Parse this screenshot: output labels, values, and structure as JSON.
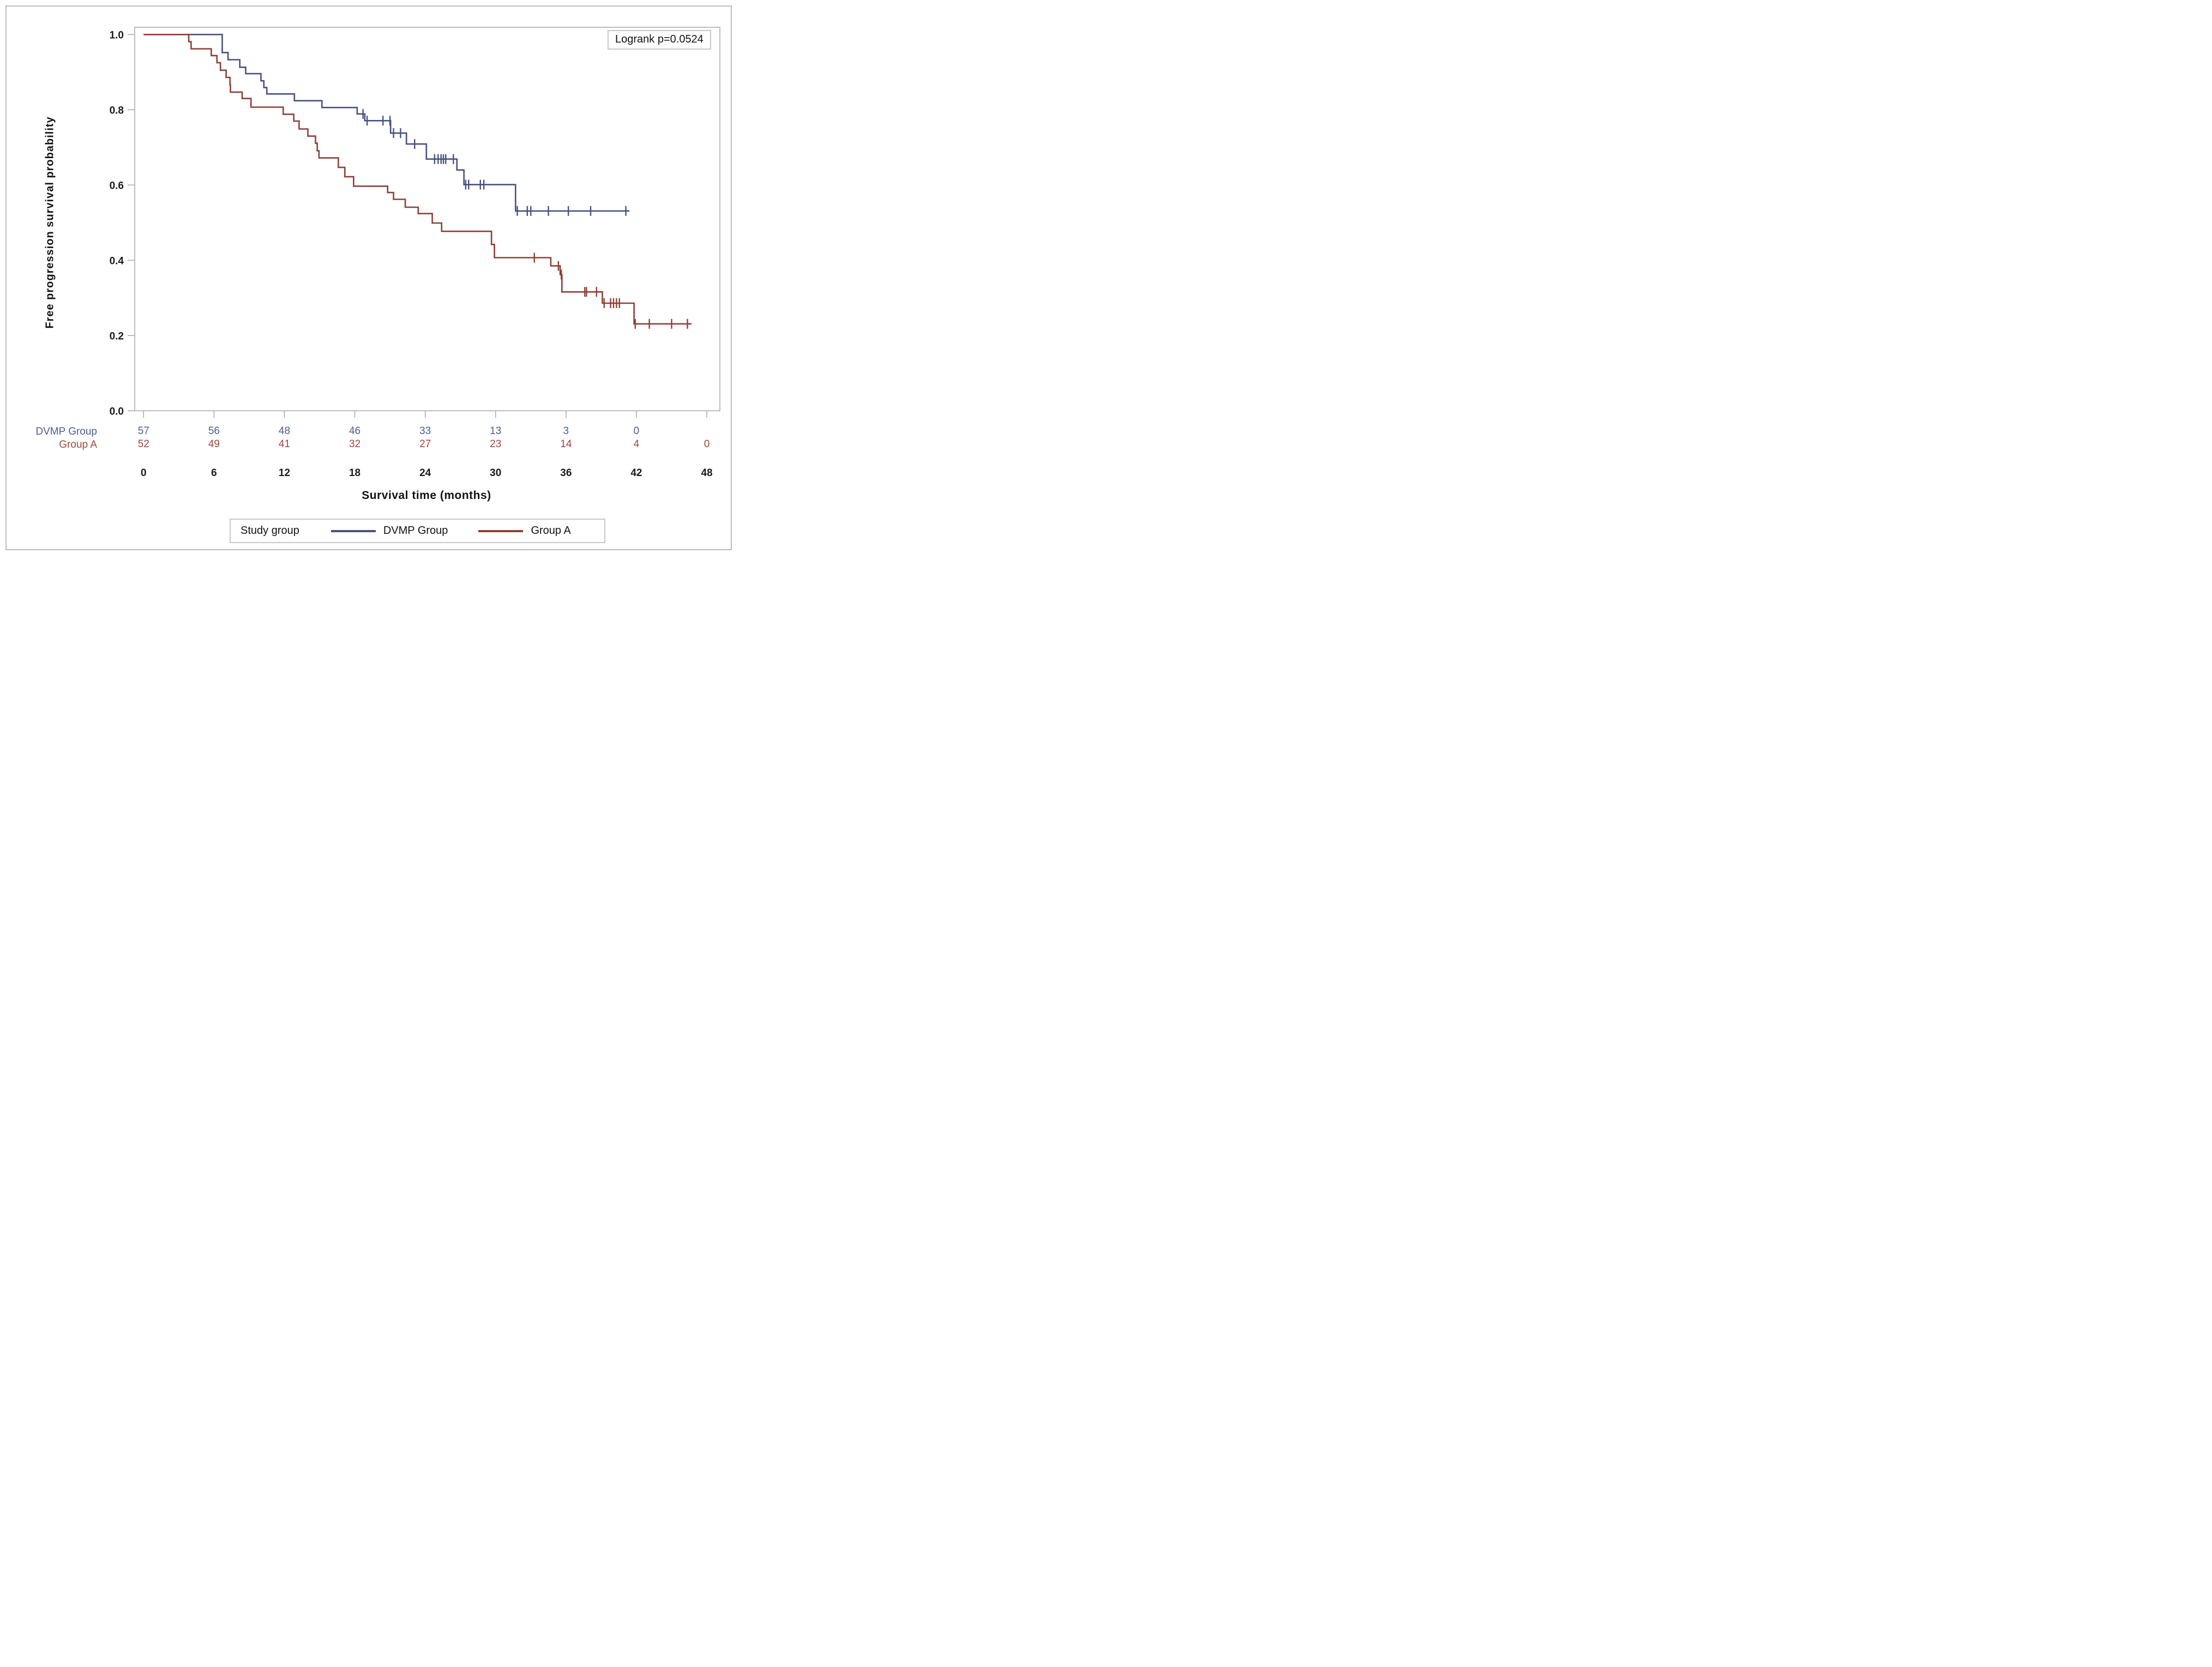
{
  "figure": {
    "background": "#ffffff",
    "border_color": "#bcbcbc"
  },
  "annotation": {
    "logrank": "Logrank p=0.0524"
  },
  "legend": {
    "title": "Study group",
    "entries": [
      {
        "label": "DVMP Group",
        "color": "#47517f"
      },
      {
        "label": "Group A",
        "color": "#8e3f35"
      }
    ]
  },
  "chart_data": {
    "type": "line",
    "subtype": "kaplan-meier-step-plot",
    "title": "",
    "xlabel": "Survival time (months)",
    "ylabel": "Free progression survival probability",
    "xlim": [
      0,
      48
    ],
    "ylim": [
      0.0,
      1.0
    ],
    "xticks": [
      0,
      6,
      12,
      18,
      24,
      30,
      36,
      42,
      48
    ],
    "ytick_labels": [
      "0.0",
      "0.2",
      "0.4",
      "0.6",
      "0.8",
      "1.0"
    ],
    "yticks": [
      0.0,
      0.2,
      0.4,
      0.6,
      0.8,
      1.0
    ],
    "grid": false,
    "annotation": "Logrank p=0.0524",
    "legend_position": "bottom",
    "axis_color": "#a8a8a8",
    "tick_text_color": "#1b1b1b",
    "series": [
      {
        "name": "DVMP Group",
        "color": "#47517f",
        "text_color": "#4d5c90",
        "steps": [
          [
            0,
            1.0
          ],
          [
            6.7,
            0.952
          ],
          [
            7.2,
            0.933
          ],
          [
            8.2,
            0.913
          ],
          [
            8.7,
            0.896
          ],
          [
            10.0,
            0.877
          ],
          [
            10.25,
            0.859
          ],
          [
            10.5,
            0.842
          ],
          [
            12.85,
            0.824
          ],
          [
            15.2,
            0.806
          ],
          [
            18.2,
            0.789
          ],
          [
            18.85,
            0.771
          ],
          [
            21.05,
            0.738
          ],
          [
            22.4,
            0.709
          ],
          [
            24.1,
            0.669
          ],
          [
            26.7,
            0.64
          ],
          [
            27.3,
            0.601
          ],
          [
            31.7,
            0.531
          ]
        ],
        "end_time": 41.4,
        "censors": [
          [
            18.7,
            0.789
          ],
          [
            19.05,
            0.771
          ],
          [
            20.4,
            0.771
          ],
          [
            21.0,
            0.771
          ],
          [
            21.3,
            0.738
          ],
          [
            21.9,
            0.738
          ],
          [
            23.1,
            0.709
          ],
          [
            24.8,
            0.669
          ],
          [
            25.1,
            0.669
          ],
          [
            25.35,
            0.669
          ],
          [
            25.55,
            0.669
          ],
          [
            25.75,
            0.669
          ],
          [
            26.4,
            0.669
          ],
          [
            27.45,
            0.601
          ],
          [
            27.7,
            0.601
          ],
          [
            28.7,
            0.601
          ],
          [
            29.0,
            0.601
          ],
          [
            31.85,
            0.531
          ],
          [
            32.7,
            0.531
          ],
          [
            33.0,
            0.531
          ],
          [
            34.5,
            0.531
          ],
          [
            36.2,
            0.531
          ],
          [
            38.1,
            0.531
          ],
          [
            41.1,
            0.531
          ]
        ]
      },
      {
        "name": "Group A",
        "color": "#8e3f35",
        "text_color": "#a1473d",
        "steps": [
          [
            0,
            1.0
          ],
          [
            3.85,
            0.981
          ],
          [
            4.05,
            0.962
          ],
          [
            5.77,
            0.944
          ],
          [
            6.25,
            0.925
          ],
          [
            6.55,
            0.905
          ],
          [
            7.03,
            0.886
          ],
          [
            7.36,
            0.866
          ],
          [
            7.4,
            0.847
          ],
          [
            8.4,
            0.83
          ],
          [
            9.15,
            0.807
          ],
          [
            11.9,
            0.788
          ],
          [
            12.8,
            0.77
          ],
          [
            13.25,
            0.749
          ],
          [
            14.0,
            0.73
          ],
          [
            14.65,
            0.711
          ],
          [
            14.8,
            0.691
          ],
          [
            14.95,
            0.672
          ],
          [
            16.6,
            0.647
          ],
          [
            17.15,
            0.622
          ],
          [
            17.9,
            0.597
          ],
          [
            20.8,
            0.58
          ],
          [
            21.3,
            0.562
          ],
          [
            22.3,
            0.541
          ],
          [
            23.4,
            0.524
          ],
          [
            24.6,
            0.499
          ],
          [
            25.4,
            0.477
          ],
          [
            29.65,
            0.442
          ],
          [
            29.9,
            0.407
          ],
          [
            34.7,
            0.385
          ],
          [
            35.5,
            0.362
          ],
          [
            35.65,
            0.316
          ],
          [
            39.1,
            0.286
          ],
          [
            41.8,
            0.231
          ]
        ],
        "end_time": 46.7,
        "censors": [
          [
            33.3,
            0.407
          ],
          [
            35.35,
            0.385
          ],
          [
            35.6,
            0.362
          ],
          [
            37.6,
            0.316
          ],
          [
            37.75,
            0.316
          ],
          [
            38.6,
            0.316
          ],
          [
            39.25,
            0.286
          ],
          [
            39.8,
            0.286
          ],
          [
            40.05,
            0.286
          ],
          [
            40.3,
            0.286
          ],
          [
            40.55,
            0.286
          ],
          [
            41.9,
            0.231
          ],
          [
            43.1,
            0.231
          ],
          [
            45.0,
            0.231
          ],
          [
            46.35,
            0.231
          ]
        ]
      }
    ],
    "at_risk": {
      "times": [
        0,
        6,
        12,
        18,
        24,
        30,
        36,
        42,
        48
      ],
      "rows": [
        {
          "name": "DVMP Group",
          "values": [
            "57",
            "56",
            "48",
            "46",
            "33",
            "13",
            "3",
            "0",
            ""
          ]
        },
        {
          "name": "Group A",
          "values": [
            "52",
            "49",
            "41",
            "32",
            "27",
            "23",
            "14",
            "4",
            "0"
          ]
        }
      ]
    }
  }
}
